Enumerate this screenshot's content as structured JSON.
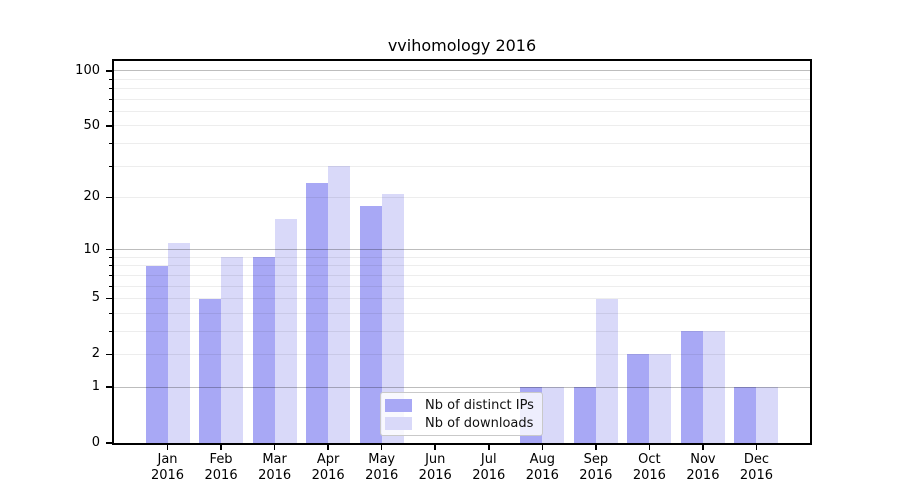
{
  "page": {
    "background": "#ffffff"
  },
  "chart_data": {
    "type": "bar",
    "title": "vvihomology 2016",
    "categories": [
      "Jan",
      "Feb",
      "Mar",
      "Apr",
      "May",
      "Jun",
      "Jul",
      "Aug",
      "Sep",
      "Oct",
      "Nov",
      "Dec"
    ],
    "category_year": "2016",
    "series": [
      {
        "name": "Nb of distinct IPs",
        "color": "#a8a8f5",
        "values": [
          8,
          5,
          9,
          24,
          18,
          0,
          0,
          1,
          1,
          2,
          3,
          1
        ]
      },
      {
        "name": "Nb of downloads",
        "color": "#d9d9f9",
        "values": [
          11,
          9,
          15,
          30,
          21,
          0,
          0,
          1,
          5,
          2,
          3,
          1
        ]
      }
    ],
    "y_axis": {
      "scale": "log1p",
      "labeled_ticks": [
        0,
        1,
        2,
        5,
        10,
        20,
        50,
        100
      ],
      "major_gridlines": [
        1,
        10,
        100
      ],
      "minor_gridlines": [
        2,
        3,
        4,
        5,
        6,
        7,
        8,
        9,
        20,
        30,
        40,
        50,
        60,
        70,
        80,
        90
      ],
      "ylim": [
        0,
        113
      ],
      "grid_major_color": "rgba(0,0,0,0.26)",
      "grid_minor_color": "rgba(0,0,0,0.07)"
    },
    "xlabel": "",
    "ylabel": "",
    "grid": "on",
    "legend_position": "lower-center-inside"
  }
}
